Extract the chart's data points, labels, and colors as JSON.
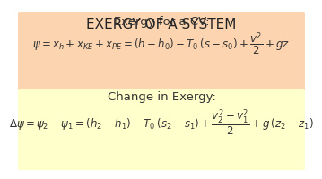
{
  "title": "EXERGY OF A SYSTEM",
  "title_fontsize": 11,
  "title_color": "#222222",
  "bg_color": "#ffffff",
  "box1_color": "#fcd5b0",
  "box2_color": "#ffffcc",
  "box1_label": "Exergy for a CV:",
  "box1_formula": "$\\psi = x_h + x_{KE} + x_{PE} = (h - h_0) - T_0\\,(s - s_0) + \\dfrac{v^2}{2} + gz$",
  "box2_label": "Change in Exergy:",
  "box2_formula": "$\\Delta\\psi = \\psi_2 - \\psi_1 = (h_2 - h_1) - T_0\\,(s_2 - s_1) + \\dfrac{v_2^2 - v_1^2}{2} + g\\,(z_2 - z_1)$",
  "label_fontsize": 9.5,
  "formula_fontsize": 8.5,
  "label_color": "#333333",
  "formula_color": "#333333"
}
